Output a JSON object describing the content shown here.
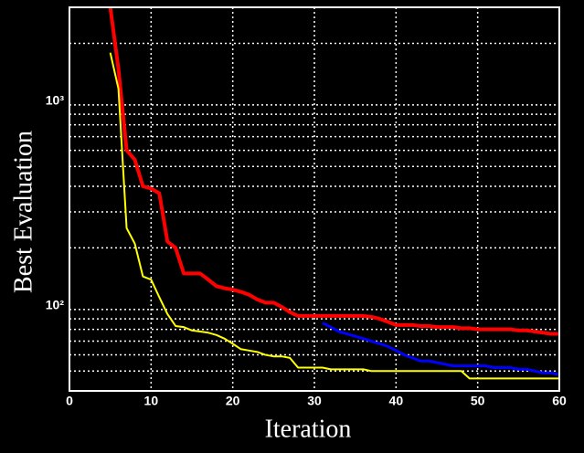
{
  "chart_data": {
    "type": "line",
    "xlabel": "Iteration",
    "ylabel": "Best Evaluation",
    "x": [
      5,
      6,
      7,
      8,
      9,
      10,
      11,
      12,
      13,
      14,
      15,
      16,
      17,
      18,
      19,
      20,
      21,
      22,
      23,
      24,
      25,
      26,
      27,
      28,
      29,
      30,
      31,
      32,
      33,
      34,
      35,
      36,
      37,
      38,
      39,
      40,
      41,
      42,
      43,
      44,
      45,
      46,
      47,
      48,
      49,
      50,
      51,
      52,
      53,
      54,
      55,
      56,
      57,
      58,
      59,
      60
    ],
    "series": [
      {
        "color": "#ff0000",
        "values": [
          3000,
          1500,
          600,
          540,
          400,
          390,
          370,
          215,
          200,
          150,
          150,
          150,
          140,
          130,
          127,
          125,
          122,
          118,
          112,
          108,
          108,
          103,
          97,
          93,
          93,
          93,
          93,
          93,
          93,
          93,
          93,
          93,
          92,
          90,
          87,
          84,
          84,
          84,
          83,
          83,
          82,
          82,
          82,
          81,
          81,
          80,
          80,
          80,
          80,
          80,
          79,
          79,
          78,
          77,
          76,
          76
        ]
      },
      {
        "color": "#ffff00",
        "values": [
          1800,
          1200,
          250,
          210,
          145,
          140,
          115,
          95,
          83,
          82,
          79,
          78,
          77,
          75,
          72,
          68,
          64,
          63,
          62,
          60,
          59,
          59,
          58,
          52,
          52,
          52,
          52,
          51,
          51,
          51,
          51,
          51,
          50,
          50,
          50,
          50,
          50,
          50,
          50,
          50,
          50,
          50,
          50,
          50,
          46,
          46,
          46,
          46,
          46,
          46,
          46,
          46,
          46,
          46,
          46,
          46
        ]
      },
      {
        "color": "#0000ff",
        "values": [
          null,
          null,
          null,
          null,
          null,
          null,
          null,
          null,
          null,
          null,
          null,
          null,
          null,
          null,
          null,
          null,
          null,
          null,
          null,
          null,
          null,
          null,
          null,
          null,
          null,
          null,
          86,
          82,
          78,
          76,
          74,
          72,
          70,
          68,
          66,
          63,
          60,
          58,
          56,
          56,
          55,
          54,
          53,
          53,
          53,
          53,
          53,
          52,
          52,
          52,
          51,
          51,
          50,
          49,
          49,
          48
        ]
      }
    ],
    "xlim": [
      0,
      60
    ],
    "xticks": [
      0,
      10,
      20,
      30,
      40,
      50,
      60
    ],
    "ylim": [
      40,
      3000
    ],
    "ylog": true,
    "yticks": [
      {
        "value": 100,
        "label": "10²"
      },
      {
        "value": 1000,
        "label": "10³"
      }
    ],
    "minor_yticks": [
      50,
      60,
      70,
      80,
      90,
      200,
      300,
      400,
      500,
      600,
      700,
      800,
      900,
      2000
    ],
    "grid": true
  }
}
